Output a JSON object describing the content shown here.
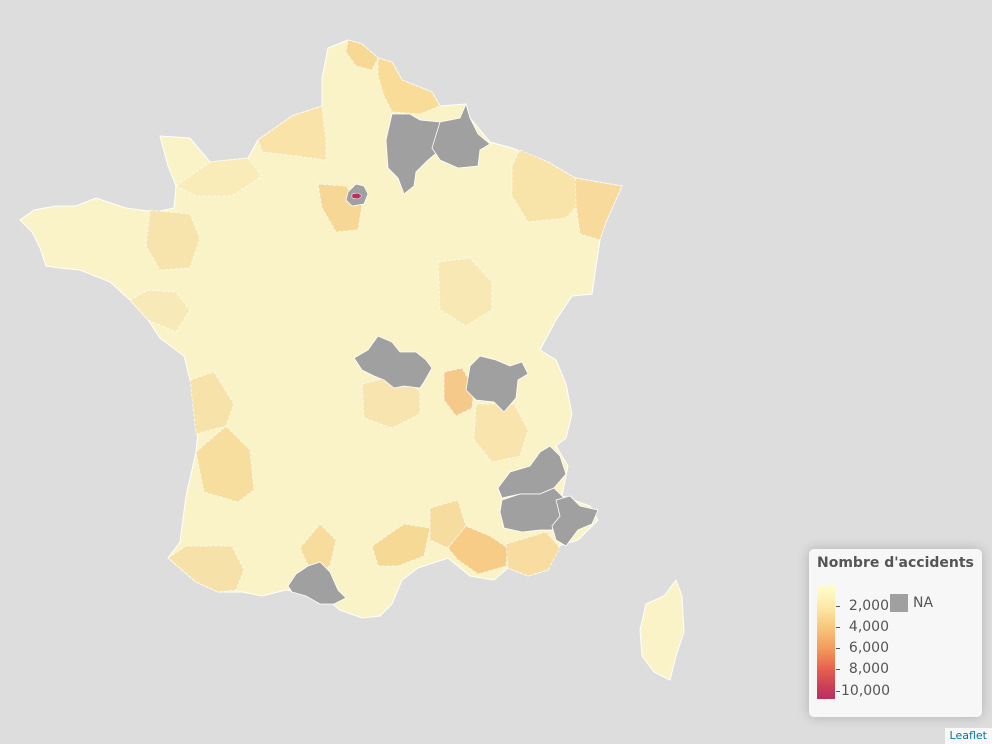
{
  "map": {
    "attribution": "Leaflet",
    "na_color": "#a0a0a0",
    "regions": [
      {
        "name": "Nord",
        "value": 3200
      },
      {
        "name": "Pas-de-Calais",
        "value": 2700
      },
      {
        "name": "Aisne",
        "value": null
      },
      {
        "name": "Oise",
        "value": null
      },
      {
        "name": "Ardennes",
        "value": null
      },
      {
        "name": "Paris",
        "value": 10500
      },
      {
        "name": "Allier",
        "value": null
      },
      {
        "name": "Ain",
        "value": null
      },
      {
        "name": "Rhône",
        "value": 3500
      },
      {
        "name": "Hautes-Alpes",
        "value": null
      },
      {
        "name": "Alpes-de-Haute-Provence",
        "value": null
      },
      {
        "name": "Alpes-Maritimes",
        "value": null
      },
      {
        "name": "Hautes-Pyrénées",
        "value": null
      }
    ]
  },
  "legend": {
    "title": "Nombre d'accidents",
    "colors": [
      "#ffffcc",
      "#fde8a5",
      "#f8c47b",
      "#f39a5c",
      "#e5604d",
      "#c93d58",
      "#b83060"
    ],
    "domain": [
      0,
      10800
    ],
    "ticks": [
      {
        "value": 2000,
        "label": "2,000"
      },
      {
        "value": 4000,
        "label": "4,000"
      },
      {
        "value": 6000,
        "label": "6,000"
      },
      {
        "value": 8000,
        "label": "8,000"
      },
      {
        "value": 10000,
        "label": "10,000"
      }
    ],
    "na_label": "NA"
  }
}
